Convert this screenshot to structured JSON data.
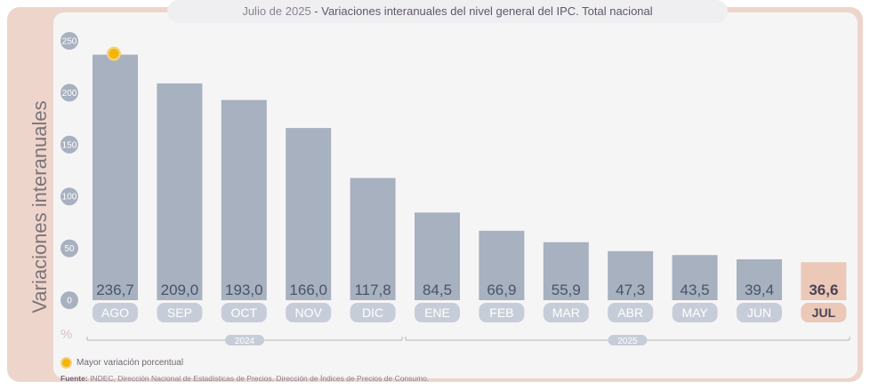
{
  "title": {
    "period": "Julio de 2025",
    "separator": " - ",
    "text": "Variaciones interanuales del nivel general del IPC. Total nacional"
  },
  "y_axis_label": "Variaciones interanuales",
  "unit_symbol": "%",
  "legend": {
    "label": "Mayor variación porcentual"
  },
  "source": {
    "prefix": "Fuente:",
    "text": " INDEC, Dirección Nacional de Estadísticas de Precios. Dirección de Índices de Precios de Consumo."
  },
  "colors": {
    "bar": "#a7b1c0",
    "highlight_bar": "#ebc8b8",
    "label_pill": "#c7cdd8",
    "highlight_label_pill": "#ebc8b8",
    "marker": "#f5b400",
    "frame": "#eed5cc"
  },
  "chart_data": {
    "type": "bar",
    "categories": [
      "AGO",
      "SEP",
      "OCT",
      "NOV",
      "DIC",
      "ENE",
      "FEB",
      "MAR",
      "ABR",
      "MAY",
      "JUN",
      "JUL"
    ],
    "values": [
      236.7,
      209.0,
      193.0,
      166.0,
      117.8,
      84.5,
      66.9,
      55.9,
      47.3,
      43.5,
      39.4,
      36.6
    ],
    "value_labels": [
      "236,7",
      "209,0",
      "193,0",
      "166,0",
      "117,8",
      "84,5",
      "66,9",
      "55,9",
      "47,3",
      "43,5",
      "39,4",
      "36,6"
    ],
    "yticks": [
      0,
      50,
      100,
      150,
      200,
      250
    ],
    "ylim": [
      0,
      250
    ],
    "highlight_index": 11,
    "max_marker_index": 0,
    "year_groups": [
      {
        "label": "2024",
        "start": 0,
        "end": 4
      },
      {
        "label": "2025",
        "start": 5,
        "end": 11
      }
    ],
    "grid": false
  }
}
